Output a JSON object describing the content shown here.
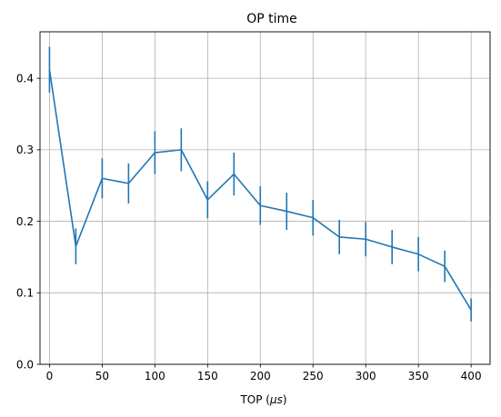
{
  "chart_data": {
    "type": "line",
    "title": "OP time",
    "xlabel": "TOP (",
    "xlabel_unit": "μs",
    "xlabel_suffix": ")",
    "ylabel": "",
    "xlim": [
      -9,
      418
    ],
    "ylim": [
      0,
      0.465
    ],
    "x_ticks": [
      0,
      50,
      100,
      150,
      200,
      250,
      300,
      350,
      400
    ],
    "y_ticks": [
      0.0,
      0.1,
      0.2,
      0.3,
      0.4
    ],
    "y_tick_labels": [
      "0.0",
      "0.1",
      "0.2",
      "0.3",
      "0.4"
    ],
    "grid": true,
    "error_bars": true,
    "series": [
      {
        "color": "#1f77b4",
        "x": [
          0,
          25,
          50,
          75,
          100,
          125,
          150,
          175,
          200,
          225,
          250,
          275,
          300,
          325,
          350,
          375,
          400
        ],
        "y": [
          0.412,
          0.165,
          0.26,
          0.253,
          0.296,
          0.3,
          0.23,
          0.266,
          0.222,
          0.214,
          0.205,
          0.178,
          0.175,
          0.164,
          0.154,
          0.137,
          0.076
        ],
        "y_err": [
          0.032,
          0.025,
          0.028,
          0.028,
          0.03,
          0.03,
          0.026,
          0.03,
          0.027,
          0.026,
          0.025,
          0.024,
          0.024,
          0.024,
          0.024,
          0.022,
          0.016
        ]
      }
    ]
  }
}
